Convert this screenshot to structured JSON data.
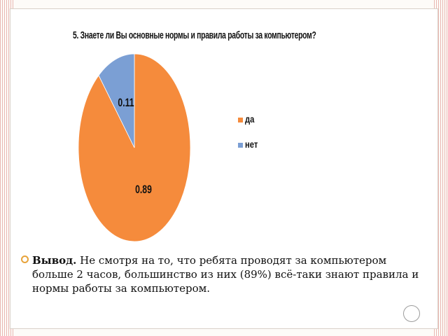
{
  "chart_data": {
    "type": "pie",
    "title": "5. Знаете ли Вы основные нормы и правила работы за компьютером?",
    "categories": [
      "да",
      "нет"
    ],
    "values": [
      0.89,
      0.11
    ],
    "data_labels": [
      "0.89",
      "0.11"
    ],
    "colors": [
      "#f58b3c",
      "#7b9fd4"
    ],
    "legend_position": "right"
  },
  "conclusion": {
    "lead": "Вывод.",
    "text": " Не смотря на то, что ребята проводят за компьютером больше 2 часов, большинство из них (89%) всё-таки знают правила и нормы работы за компьютером."
  }
}
